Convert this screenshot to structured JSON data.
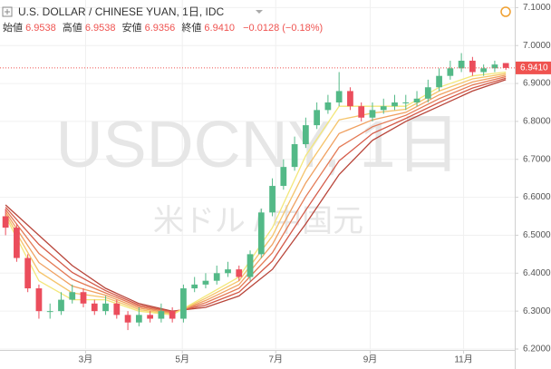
{
  "chart_data": {
    "type": "candlestick",
    "title": "U.S. DOLLAR / CHINESE YUAN, 1日, IDC",
    "ohlc_legend": [
      {
        "label": "始値",
        "value": "6.9538"
      },
      {
        "label": "高値",
        "value": "6.9538"
      },
      {
        "label": "安値",
        "value": "6.9356"
      },
      {
        "label": "終値",
        "value": "6.9410"
      }
    ],
    "change": "−0.0128 (−0.18%)",
    "watermark": [
      "USDCNY, 1日",
      "米ドル / 中国元"
    ],
    "x": [
      0,
      1,
      2,
      3,
      4,
      5,
      6,
      7,
      8,
      9,
      10,
      11,
      12,
      13,
      14,
      15,
      16,
      17,
      18,
      19,
      20,
      21,
      22,
      23,
      24,
      25,
      26,
      27,
      28,
      29,
      30,
      31,
      32,
      33,
      34,
      35,
      36,
      37,
      38,
      39,
      40,
      41,
      42,
      43,
      44,
      45
    ],
    "open": [
      6.55,
      6.52,
      6.44,
      6.36,
      6.3,
      6.3,
      6.33,
      6.35,
      6.32,
      6.3,
      6.32,
      6.29,
      6.27,
      6.29,
      6.28,
      6.3,
      6.28,
      6.36,
      6.37,
      6.38,
      6.4,
      6.41,
      6.39,
      6.45,
      6.56,
      6.63,
      6.68,
      6.74,
      6.79,
      6.83,
      6.85,
      6.88,
      6.84,
      6.81,
      6.83,
      6.84,
      6.85,
      6.85,
      6.86,
      6.89,
      6.92,
      6.94,
      6.96,
      6.93,
      6.94,
      6.9538
    ],
    "high": [
      6.57,
      6.53,
      6.45,
      6.37,
      6.32,
      6.35,
      6.37,
      6.36,
      6.33,
      6.34,
      6.33,
      6.3,
      6.31,
      6.3,
      6.32,
      6.31,
      6.37,
      6.39,
      6.4,
      6.42,
      6.43,
      6.42,
      6.46,
      6.57,
      6.65,
      6.7,
      6.76,
      6.81,
      6.85,
      6.87,
      6.93,
      6.89,
      6.85,
      6.85,
      6.86,
      6.87,
      6.87,
      6.88,
      6.91,
      6.94,
      6.96,
      6.98,
      6.97,
      6.95,
      6.96,
      6.9538
    ],
    "low": [
      6.5,
      6.43,
      6.35,
      6.28,
      6.28,
      6.29,
      6.32,
      6.31,
      6.29,
      6.29,
      6.28,
      6.25,
      6.26,
      6.27,
      6.27,
      6.27,
      6.27,
      6.35,
      6.36,
      6.37,
      6.39,
      6.38,
      6.38,
      6.44,
      6.55,
      6.62,
      6.67,
      6.73,
      6.78,
      6.82,
      6.84,
      6.83,
      6.8,
      6.8,
      6.82,
      6.83,
      6.83,
      6.84,
      6.85,
      6.88,
      6.91,
      6.93,
      6.92,
      6.92,
      6.93,
      6.9356
    ],
    "close": [
      6.52,
      6.44,
      6.36,
      6.3,
      6.3,
      6.33,
      6.35,
      6.32,
      6.3,
      6.32,
      6.29,
      6.27,
      6.29,
      6.28,
      6.3,
      6.28,
      6.36,
      6.37,
      6.38,
      6.4,
      6.41,
      6.39,
      6.45,
      6.56,
      6.63,
      6.68,
      6.74,
      6.79,
      6.83,
      6.85,
      6.88,
      6.84,
      6.81,
      6.83,
      6.84,
      6.85,
      6.85,
      6.86,
      6.89,
      6.92,
      6.94,
      6.96,
      6.93,
      6.94,
      6.95,
      6.941
    ],
    "up_color": "#53b987",
    "down_color": "#eb4d5c",
    "ribbons": [
      {
        "color": "#b8453a",
        "x": [
          0,
          3,
          6,
          9,
          12,
          15,
          18,
          21,
          24,
          27,
          30,
          33,
          36,
          39,
          42,
          45
        ],
        "values": [
          6.58,
          6.5,
          6.42,
          6.36,
          6.32,
          6.3,
          6.31,
          6.34,
          6.41,
          6.53,
          6.66,
          6.75,
          6.8,
          6.84,
          6.88,
          6.91
        ]
      },
      {
        "color": "#d45a48",
        "x": [
          0,
          3,
          6,
          9,
          12,
          15,
          18,
          21,
          24,
          27,
          30,
          33,
          36,
          39,
          42,
          45
        ],
        "values": [
          6.574,
          6.476,
          6.402,
          6.354,
          6.316,
          6.298,
          6.316,
          6.35,
          6.432,
          6.566,
          6.696,
          6.768,
          6.808,
          6.85,
          6.888,
          6.914
        ]
      },
      {
        "color": "#e47a55",
        "x": [
          0,
          3,
          6,
          9,
          12,
          15,
          18,
          21,
          24,
          27,
          30,
          33,
          36,
          39,
          42,
          45
        ],
        "values": [
          6.568,
          6.452,
          6.384,
          6.348,
          6.312,
          6.296,
          6.322,
          6.36,
          6.454,
          6.602,
          6.732,
          6.786,
          6.816,
          6.86,
          6.896,
          6.918
        ]
      },
      {
        "color": "#f0a060",
        "x": [
          0,
          3,
          6,
          9,
          12,
          15,
          18,
          21,
          24,
          27,
          30,
          33,
          36,
          39,
          42,
          45
        ],
        "values": [
          6.562,
          6.428,
          6.366,
          6.342,
          6.308,
          6.294,
          6.328,
          6.37,
          6.476,
          6.638,
          6.768,
          6.804,
          6.824,
          6.87,
          6.904,
          6.922
        ]
      },
      {
        "color": "#f5c46b",
        "x": [
          0,
          3,
          6,
          9,
          12,
          15,
          18,
          21,
          24,
          27,
          30,
          33,
          36,
          39,
          42,
          45
        ],
        "values": [
          6.556,
          6.404,
          6.348,
          6.336,
          6.304,
          6.292,
          6.334,
          6.38,
          6.498,
          6.674,
          6.804,
          6.822,
          6.832,
          6.88,
          6.912,
          6.926
        ]
      },
      {
        "color": "#f3e77a",
        "x": [
          0,
          3,
          6,
          9,
          12,
          15,
          18,
          21,
          24,
          27,
          30,
          33,
          36,
          39,
          42,
          45
        ],
        "values": [
          6.55,
          6.38,
          6.33,
          6.33,
          6.3,
          6.29,
          6.34,
          6.39,
          6.52,
          6.71,
          6.84,
          6.84,
          6.84,
          6.89,
          6.92,
          6.93
        ]
      }
    ],
    "last_price": {
      "value": 6.941,
      "label": "6.9410"
    },
    "last_color": "#ef5350",
    "xlim": [
      -0.5,
      45.8
    ],
    "ylim": [
      6.2,
      7.12
    ],
    "xticks": [
      {
        "value": 7.2,
        "label": "3月"
      },
      {
        "value": 15.9,
        "label": "5月"
      },
      {
        "value": 24.3,
        "label": "7月"
      },
      {
        "value": 32.8,
        "label": "9月"
      },
      {
        "value": 41.2,
        "label": "11月"
      }
    ],
    "yticks": [
      {
        "value": 6.2,
        "label": "6.2000"
      },
      {
        "value": 6.3,
        "label": "6.3000"
      },
      {
        "value": 6.4,
        "label": "6.4000"
      },
      {
        "value": 6.5,
        "label": "6.5000"
      },
      {
        "value": 6.6,
        "label": "6.6000"
      },
      {
        "value": 6.7,
        "label": "6.7000"
      },
      {
        "value": 6.8,
        "label": "6.8000"
      },
      {
        "value": 6.9,
        "label": "6.9000"
      },
      {
        "value": 7.0,
        "label": "7.0000"
      },
      {
        "value": 7.1,
        "label": "7.1000"
      }
    ],
    "grid": true
  }
}
